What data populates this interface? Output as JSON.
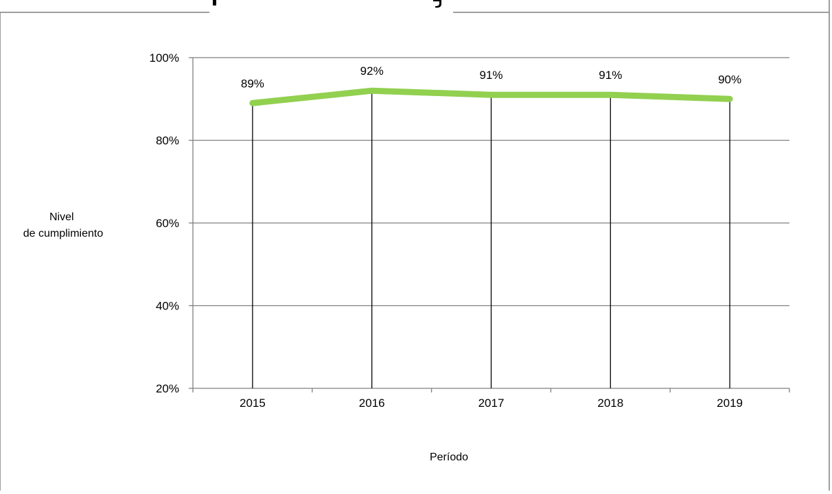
{
  "chart_data": {
    "type": "line",
    "title": "",
    "xlabel": "Período",
    "ylabel_lines": [
      "Nivel",
      "de cumplimiento"
    ],
    "categories": [
      "2015",
      "2016",
      "2017",
      "2018",
      "2019"
    ],
    "series": [
      {
        "values": [
          0.89,
          0.92,
          0.91,
          0.91,
          0.9
        ],
        "labels": [
          "89%",
          "92%",
          "91%",
          "91%",
          "90%"
        ],
        "color": "#92d050"
      }
    ],
    "yticks": [
      {
        "value": 1.0,
        "label": "100%"
      },
      {
        "value": 0.8,
        "label": "80%"
      },
      {
        "value": 0.6,
        "label": "60%"
      },
      {
        "value": 0.4,
        "label": "40%"
      },
      {
        "value": 0.2,
        "label": "20%"
      }
    ],
    "ylim": [
      0.2,
      1.0
    ],
    "grid": true,
    "drop_lines": true,
    "colors": {
      "line": "#92d050",
      "grid": "#7f7f7f",
      "drop_line": "#000000",
      "frame": "#7f7f7f"
    }
  }
}
